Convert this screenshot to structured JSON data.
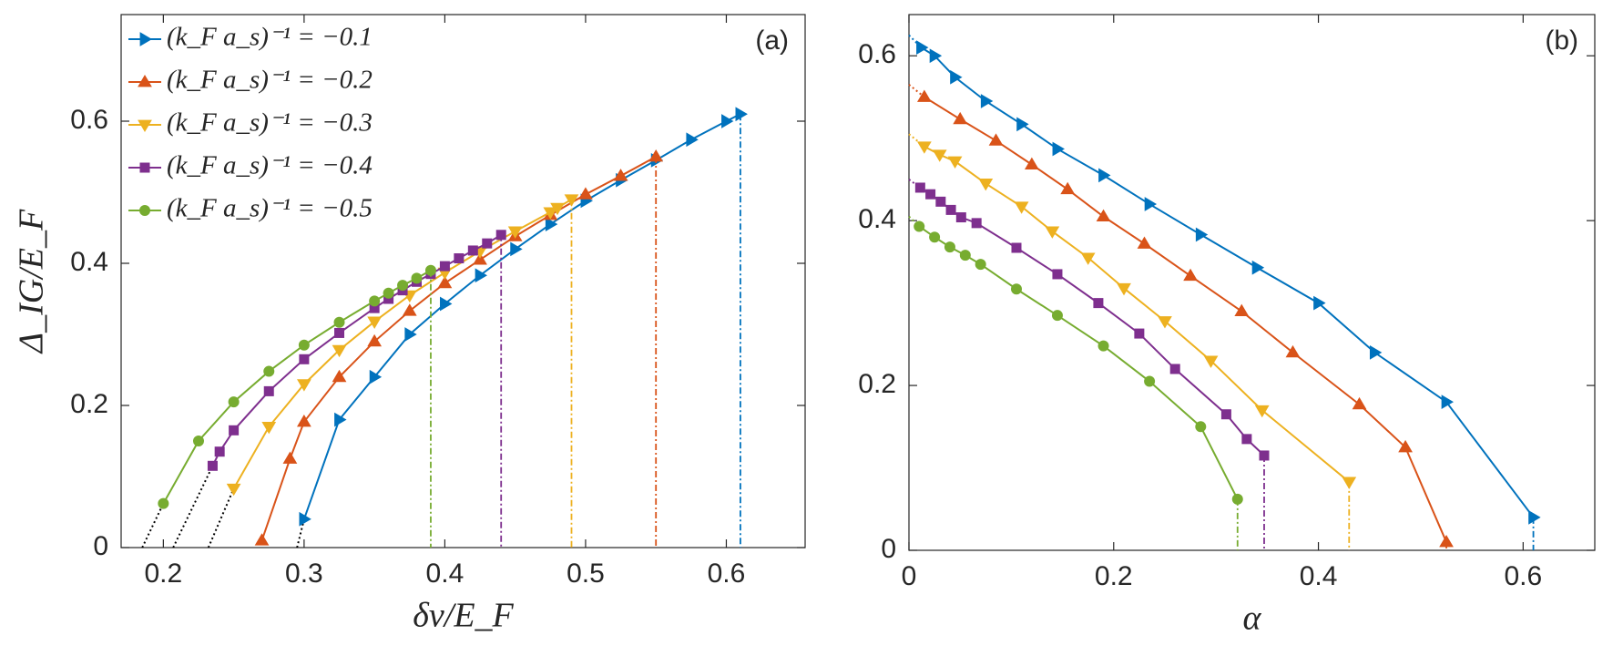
{
  "chart_data": [
    {
      "type": "line",
      "title": "(a)",
      "xlabel": "δν/E_F",
      "ylabel": "Δ_IG/E_F",
      "xlim": [
        0.17,
        0.656
      ],
      "ylim": [
        0,
        0.75
      ],
      "xticks": [
        0.2,
        0.3,
        0.4,
        0.5,
        0.6
      ],
      "yticks": [
        0,
        0.2,
        0.4,
        0.6
      ],
      "legend": "upper left",
      "series": [
        {
          "name": "(k_F a_s)⁻¹ = −0.1",
          "color": "#0072BD",
          "marker": "triangle-right",
          "x": [
            0.3,
            0.325,
            0.35,
            0.375,
            0.4,
            0.425,
            0.45,
            0.475,
            0.5,
            0.525,
            0.55,
            0.575,
            0.6,
            0.61
          ],
          "values": [
            0.04,
            0.18,
            0.24,
            0.3,
            0.343,
            0.383,
            0.42,
            0.455,
            0.488,
            0.517,
            0.545,
            0.574,
            0.6,
            0.61
          ],
          "extrapolation": {
            "x": [
              0.295
            ],
            "values": [
              0
            ]
          }
        },
        {
          "name": "(k_F a_s)⁻¹ = −0.2",
          "color": "#D95319",
          "marker": "triangle-up",
          "x": [
            0.27,
            0.29,
            0.3,
            0.325,
            0.35,
            0.375,
            0.4,
            0.425,
            0.45,
            0.475,
            0.5,
            0.525,
            0.55
          ],
          "values": [
            0.01,
            0.125,
            0.177,
            0.24,
            0.29,
            0.333,
            0.372,
            0.405,
            0.438,
            0.468,
            0.497,
            0.523,
            0.55
          ]
        },
        {
          "name": "(k_F a_s)⁻¹ = −0.3",
          "color": "#EDB120",
          "marker": "triangle-down",
          "x": [
            0.25,
            0.275,
            0.3,
            0.325,
            0.35,
            0.375,
            0.4,
            0.425,
            0.45,
            0.475,
            0.48,
            0.49
          ],
          "values": [
            0.083,
            0.17,
            0.23,
            0.278,
            0.318,
            0.355,
            0.387,
            0.417,
            0.445,
            0.472,
            0.478,
            0.49
          ],
          "extrapolation": {
            "x": [
              0.232
            ],
            "values": [
              0
            ]
          }
        },
        {
          "name": "(k_F a_s)⁻¹ = −0.4",
          "color": "#7E2F8E",
          "marker": "square",
          "x": [
            0.235,
            0.24,
            0.25,
            0.275,
            0.3,
            0.325,
            0.35,
            0.36,
            0.37,
            0.38,
            0.39,
            0.4,
            0.41,
            0.42,
            0.43,
            0.44
          ],
          "values": [
            0.115,
            0.135,
            0.165,
            0.22,
            0.265,
            0.302,
            0.337,
            0.35,
            0.362,
            0.374,
            0.385,
            0.396,
            0.407,
            0.418,
            0.428,
            0.44
          ],
          "extrapolation": {
            "x": [
              0.207
            ],
            "values": [
              0
            ]
          }
        },
        {
          "name": "(k_F a_s)⁻¹ = −0.5",
          "color": "#77AC30",
          "marker": "circle",
          "x": [
            0.2,
            0.225,
            0.25,
            0.275,
            0.3,
            0.325,
            0.35,
            0.36,
            0.37,
            0.38,
            0.39
          ],
          "values": [
            0.062,
            0.15,
            0.205,
            0.248,
            0.285,
            0.317,
            0.347,
            0.358,
            0.369,
            0.379,
            0.39
          ],
          "extrapolation": {
            "x": [
              0.185
            ],
            "values": [
              0
            ]
          }
        }
      ]
    },
    {
      "type": "line",
      "title": "(b)",
      "xlabel": "α",
      "xlim": [
        0,
        0.67
      ],
      "ylim": [
        0,
        0.65
      ],
      "xticks": [
        0,
        0.2,
        0.4,
        0.6
      ],
      "yticks": [
        0,
        0.2,
        0.4,
        0.6
      ],
      "series": [
        {
          "color": "#0072BD",
          "marker": "triangle-right",
          "x": [
            0.012,
            0.025,
            0.045,
            0.075,
            0.11,
            0.145,
            0.19,
            0.235,
            0.285,
            0.34,
            0.4,
            0.455,
            0.525,
            0.61
          ],
          "values": [
            0.61,
            0.6,
            0.574,
            0.545,
            0.517,
            0.487,
            0.455,
            0.42,
            0.383,
            0.343,
            0.3,
            0.24,
            0.18,
            0.04
          ],
          "extrapolation": {
            "x": [
              0
            ],
            "values": [
              0.625
            ]
          }
        },
        {
          "color": "#D95319",
          "marker": "triangle-up",
          "x": [
            0.015,
            0.05,
            0.085,
            0.12,
            0.155,
            0.19,
            0.23,
            0.275,
            0.325,
            0.375,
            0.44,
            0.485,
            0.525
          ],
          "values": [
            0.55,
            0.523,
            0.497,
            0.468,
            0.438,
            0.405,
            0.372,
            0.333,
            0.29,
            0.24,
            0.177,
            0.125,
            0.01
          ],
          "extrapolation": {
            "x": [
              0
            ],
            "values": [
              0.565
            ]
          }
        },
        {
          "color": "#EDB120",
          "marker": "triangle-down",
          "x": [
            0.015,
            0.03,
            0.045,
            0.075,
            0.11,
            0.14,
            0.175,
            0.21,
            0.25,
            0.295,
            0.345,
            0.43
          ],
          "values": [
            0.49,
            0.48,
            0.472,
            0.445,
            0.417,
            0.387,
            0.355,
            0.318,
            0.278,
            0.23,
            0.17,
            0.083
          ],
          "extrapolation": {
            "x": [
              0
            ],
            "values": [
              0.505
            ]
          }
        },
        {
          "color": "#7E2F8E",
          "marker": "square",
          "x": [
            0.011,
            0.021,
            0.031,
            0.041,
            0.051,
            0.066,
            0.105,
            0.145,
            0.185,
            0.225,
            0.26,
            0.31,
            0.33,
            0.347
          ],
          "values": [
            0.44,
            0.432,
            0.423,
            0.413,
            0.404,
            0.397,
            0.367,
            0.335,
            0.3,
            0.263,
            0.22,
            0.165,
            0.135,
            0.115
          ],
          "extrapolation": {
            "x": [
              0
            ],
            "values": [
              0.45
            ]
          }
        },
        {
          "color": "#77AC30",
          "marker": "circle",
          "x": [
            0.01,
            0.025,
            0.04,
            0.055,
            0.07,
            0.105,
            0.145,
            0.19,
            0.235,
            0.285,
            0.321
          ],
          "values": [
            0.393,
            0.38,
            0.368,
            0.358,
            0.347,
            0.317,
            0.285,
            0.248,
            0.205,
            0.15,
            0.062
          ],
          "extrapolation": {
            "x": [
              0
            ],
            "values": [
              0.405
            ]
          }
        }
      ]
    }
  ]
}
